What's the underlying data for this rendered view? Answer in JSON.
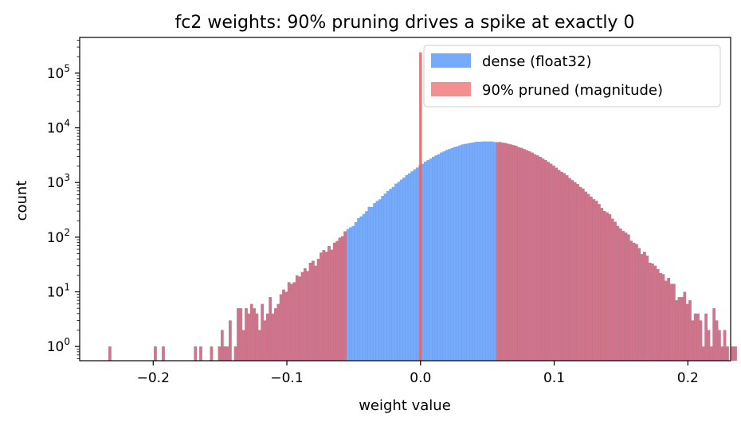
{
  "chart_data": {
    "type": "bar",
    "title": "fc2 weights: 90% pruning drives a spike at exactly 0",
    "xlabel": "weight value",
    "ylabel": "count",
    "xlim": [
      -0.255,
      0.232
    ],
    "ylim": [
      0.55,
      450000
    ],
    "yscale": "log",
    "x_ticks": [
      -0.2,
      -0.1,
      0.0,
      0.1,
      0.2
    ],
    "x_tick_labels": [
      "−0.2",
      "−0.1",
      "0.0",
      "0.1",
      "0.2"
    ],
    "y_ticks": [
      1,
      10,
      100,
      1000,
      10000,
      100000
    ],
    "y_tick_base": "10",
    "y_tick_exponents": [
      "0",
      "1",
      "2",
      "3",
      "4",
      "5"
    ],
    "grid": false,
    "legend_position": "top-right",
    "histogram": {
      "bin_start": -0.2335,
      "bin_width": 0.002,
      "mask_threshold": 0.0565
    },
    "series": [
      {
        "name": "dense (float32)",
        "color": "#4a8ef5",
        "opacity": 0.75,
        "counts": [
          1,
          0,
          0,
          0,
          0,
          0,
          0,
          0,
          0,
          0,
          0,
          0,
          0,
          0,
          0,
          0,
          0,
          1,
          0,
          0,
          1,
          0,
          0,
          0,
          0,
          0,
          0,
          0,
          0,
          0,
          0,
          0,
          1,
          0,
          1,
          0,
          0,
          0,
          1,
          0,
          0,
          1,
          2,
          1,
          1,
          3,
          0,
          1,
          5,
          5,
          2,
          5,
          4,
          6,
          5,
          4,
          2,
          6,
          3,
          4,
          8,
          4,
          5,
          6,
          9,
          11,
          10,
          15,
          14,
          15,
          20,
          19,
          23,
          27,
          24,
          34,
          37,
          30,
          40,
          52,
          58,
          54,
          69,
          59,
          79,
          85,
          98,
          104,
          128,
          141,
          151,
          160,
          188,
          222,
          240,
          266,
          299,
          359,
          357,
          419,
          460,
          493,
          567,
          626,
          701,
          766,
          830,
          951,
          1026,
          1129,
          1229,
          1369,
          1474,
          1596,
          1741,
          1878,
          2084,
          2199,
          2406,
          2568,
          2737,
          2957,
          3133,
          3291,
          3535,
          3700,
          3938,
          4089,
          4263,
          4471,
          4585,
          4807,
          4986,
          5094,
          5177,
          5318,
          5411,
          5541,
          5553,
          5588,
          5641,
          5629,
          5642,
          5614,
          5496,
          5478,
          5491,
          5333,
          5289,
          5104,
          4973,
          4818,
          4667,
          4406,
          4286,
          4080,
          3915,
          3722,
          3521,
          3286,
          3130,
          2942,
          2728,
          2565,
          2379,
          2204,
          2036,
          1868,
          1696,
          1566,
          1478,
          1351,
          1204,
          1101,
          1012,
          935,
          827,
          774,
          681,
          617,
          552,
          495,
          462,
          403,
          342,
          301,
          283,
          262,
          218,
          191,
          160,
          144,
          130,
          121,
          112,
          86,
          79,
          75,
          63,
          49,
          54,
          46,
          34,
          33,
          30,
          26,
          22,
          21,
          16,
          18,
          14,
          14,
          7,
          8,
          8,
          10,
          6,
          7,
          3,
          4,
          4,
          3,
          1,
          4,
          2,
          1,
          5,
          3,
          2,
          1,
          2,
          1,
          0,
          1,
          1,
          0,
          0,
          1,
          0,
          0,
          1,
          1,
          0,
          2,
          1
        ]
      },
      {
        "name": "90% pruned (magnitude)",
        "color": "#f06060",
        "opacity": 0.7,
        "spike_x": 0.0,
        "spike_count": 240000
      }
    ]
  }
}
